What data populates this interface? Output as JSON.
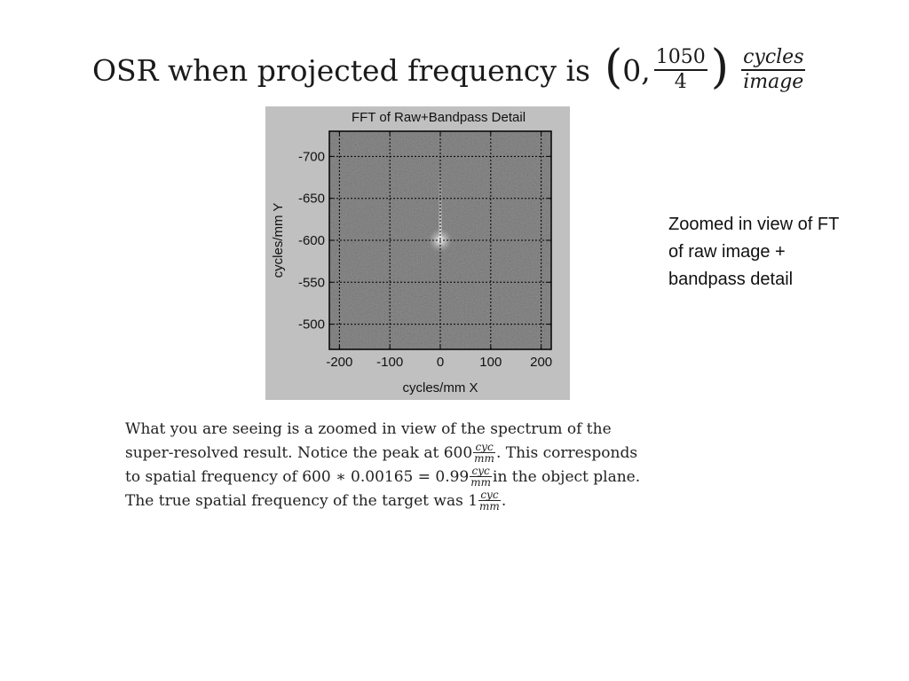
{
  "title": {
    "text": "OSR when projected frequency is",
    "paren_open": "(",
    "zero": "0,",
    "frac_num": "1050",
    "frac_den": "4",
    "paren_close": ")",
    "unit_num": "cycles",
    "unit_den": "image"
  },
  "figure": {
    "title": "FFT of Raw+Bandpass Detail",
    "xlabel": "cycles/mm X",
    "ylabel": "cycles/mm Y",
    "background_color": "#c0c0c0",
    "plot_color": "#5a5a5a"
  },
  "chart_data": {
    "type": "heatmap",
    "title": "FFT of Raw+Bandpass Detail",
    "xlabel": "cycles/mm X",
    "ylabel": "cycles/mm Y",
    "xlim": [
      -220,
      220
    ],
    "ylim": [
      -470,
      -730
    ],
    "xticks": [
      -200,
      -100,
      0,
      100,
      200
    ],
    "xtick_labels": [
      "-200",
      "-100",
      "0",
      "100",
      "200"
    ],
    "yticks": [
      -700,
      -650,
      -600,
      -550,
      -500
    ],
    "ytick_labels": [
      "-700",
      "-650",
      "-600",
      "-550",
      "-500"
    ],
    "y_axis_reversed": true,
    "grid": true,
    "colormap": "gray",
    "features": [
      {
        "description": "bright peak",
        "x": 0,
        "y": -600
      }
    ]
  },
  "side_note": {
    "lines": [
      "Zoomed in view of FT",
      "of raw image +",
      "bandpass detail"
    ]
  },
  "paragraph": {
    "l1": "What you are seeing is a zoomed in view of the spectrum of the",
    "l2a": "super-resolved result. Notice the peak at 600",
    "l2b": ". This corresponds",
    "l3a": "to spatial frequency of 600 ∗ 0.00165 = 0.99",
    "l3b": " in the object plane.",
    "l4a": "The true spatial frequency of the target was 1",
    "l4b": ".",
    "cyc": "cyc",
    "mm": "mm"
  }
}
